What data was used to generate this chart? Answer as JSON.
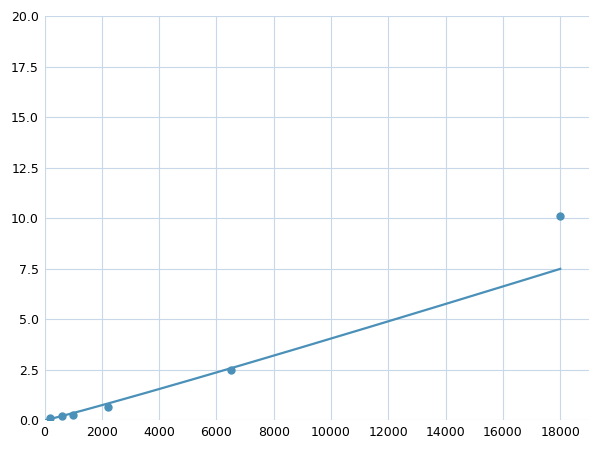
{
  "x": [
    200,
    600,
    1000,
    2200,
    6500,
    18000
  ],
  "y": [
    0.1,
    0.2,
    0.25,
    0.65,
    2.5,
    10.1
  ],
  "line_color": "#4a90b8",
  "marker_color": "#4a90b8",
  "marker_size": 5,
  "xlim": [
    0,
    19000
  ],
  "ylim": [
    0,
    20.0
  ],
  "xticks": [
    0,
    2000,
    4000,
    6000,
    8000,
    10000,
    12000,
    14000,
    16000,
    18000
  ],
  "yticks": [
    0.0,
    2.5,
    5.0,
    7.5,
    10.0,
    12.5,
    15.0,
    17.5,
    20.0
  ],
  "grid_color": "#c8d8e8",
  "background_color": "#ffffff",
  "tick_fontsize": 9,
  "line_width": 1.6,
  "figsize": [
    6.0,
    4.5
  ],
  "dpi": 100
}
